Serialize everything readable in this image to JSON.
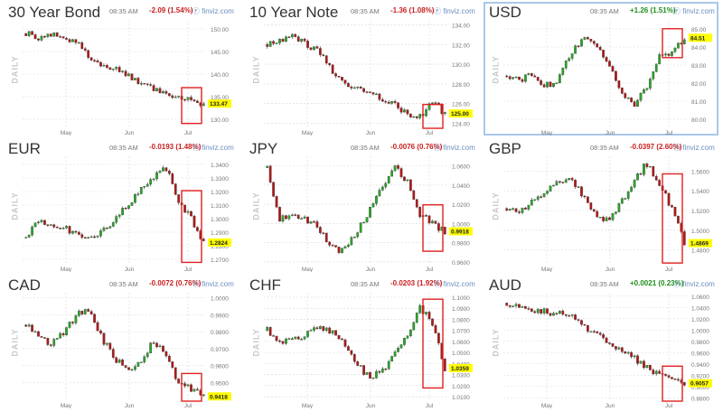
{
  "chart_data": [
    {
      "type": "candlestick",
      "title": "30 Year Bond",
      "time": "08:35 AM",
      "change": "-2.09 (1.54%)",
      "direction": "down",
      "source": "finviz.com",
      "side_label": "DAILY",
      "x_ticks": [
        "May",
        "Jun",
        "Jul"
      ],
      "y_ticks": [
        "130.00",
        "135.00",
        "140.00",
        "145.00",
        "150.00"
      ],
      "ylim": [
        128,
        152
      ],
      "last_value": "133.47",
      "shape": [
        149,
        148,
        149,
        148,
        147,
        144,
        142,
        141,
        140,
        138,
        137,
        136,
        135,
        134,
        133
      ]
    },
    {
      "type": "candlestick",
      "title": "10 Year Note",
      "time": "08:35 AM",
      "change": "-1.36 (1.08%)",
      "direction": "down",
      "source": "finviz.com",
      "side_label": "DAILY",
      "x_ticks": [
        "May",
        "Jun",
        "Jul"
      ],
      "y_ticks": [
        "124.00",
        "126.00",
        "128.00",
        "130.00",
        "132.00",
        "134.00"
      ],
      "ylim": [
        123.5,
        134.5
      ],
      "last_value": "125.00",
      "shape": [
        132,
        132.5,
        133,
        132,
        131.5,
        129.5,
        128,
        127.5,
        127,
        126.5,
        126,
        125,
        124.6,
        126.2,
        125
      ]
    },
    {
      "type": "candlestick",
      "title": "USD",
      "time": "08:35 AM",
      "change": "+1.26 (1.51%)",
      "direction": "up",
      "source": "finviz.com",
      "side_label": "DAILY",
      "x_ticks": [
        "May",
        "Jun",
        "Jul"
      ],
      "y_ticks": [
        "80.00",
        "81.00",
        "82.00",
        "83.00",
        "84.00",
        "85.00"
      ],
      "ylim": [
        79.5,
        85.5
      ],
      "last_value": "84.51",
      "shape": [
        82.4,
        82.1,
        82.6,
        81.8,
        82.2,
        83.6,
        84.5,
        84.2,
        83.2,
        81.6,
        80.8,
        81.8,
        83.4,
        83.6,
        84.5
      ]
    },
    {
      "type": "candlestick",
      "title": "EUR",
      "time": "08:35 AM",
      "change": "-0.0193 (1.48%)",
      "direction": "down",
      "source": "finviz.com",
      "side_label": "DAILY",
      "x_ticks": [
        "May",
        "Jun",
        "Jul"
      ],
      "y_ticks": [
        "1.2700",
        "1.2800",
        "1.2900",
        "1.3000",
        "1.3100",
        "1.3200",
        "1.3300",
        "1.3400"
      ],
      "ylim": [
        1.266,
        1.346
      ],
      "last_value": "1.2824",
      "shape": [
        1.286,
        1.298,
        1.296,
        1.294,
        1.288,
        1.284,
        1.29,
        1.3,
        1.31,
        1.322,
        1.33,
        1.338,
        1.314,
        1.3,
        1.282
      ]
    },
    {
      "type": "candlestick",
      "title": "JPY",
      "time": "08:35 AM",
      "change": "-0.0076 (0.76%)",
      "direction": "down",
      "source": "finviz.com",
      "side_label": "DAILY",
      "x_ticks": [
        "May",
        "Jun",
        "Jul"
      ],
      "y_ticks": [
        "0.9600",
        "0.9800",
        "1.0000",
        "1.0200",
        "1.0400",
        "1.0600"
      ],
      "ylim": [
        0.957,
        1.07
      ],
      "last_value": "0.9918",
      "shape": [
        1.058,
        1.004,
        1.01,
        1.004,
        0.996,
        0.978,
        0.97,
        0.99,
        1.012,
        1.036,
        1.062,
        1.044,
        1.01,
        1.0,
        0.992
      ]
    },
    {
      "type": "candlestick",
      "title": "GBP",
      "time": "08:35 AM",
      "change": "-0.0397 (2.60%)",
      "direction": "down",
      "source": "finviz.com",
      "side_label": "DAILY",
      "x_ticks": [
        "May",
        "Jun",
        "Jul"
      ],
      "y_ticks": [
        "1.4800",
        "1.5000",
        "1.5200",
        "1.5400",
        "1.5600"
      ],
      "ylim": [
        1.465,
        1.575
      ],
      "last_value": "1.4869",
      "shape": [
        1.522,
        1.52,
        1.528,
        1.538,
        1.548,
        1.552,
        1.536,
        1.516,
        1.51,
        1.528,
        1.548,
        1.568,
        1.548,
        1.522,
        1.487
      ]
    },
    {
      "type": "candlestick",
      "title": "CAD",
      "time": "08:35 AM",
      "change": "-0.0072 (0.76%)",
      "direction": "down",
      "source": "finviz.com",
      "side_label": "DAILY",
      "x_ticks": [
        "May",
        "Jun",
        "Jul"
      ],
      "y_ticks": [
        "0.9500",
        "0.9600",
        "0.9700",
        "0.9800",
        "0.9900",
        "1.0000"
      ],
      "ylim": [
        0.939,
        1.003
      ],
      "last_value": "0.9418",
      "shape": [
        0.984,
        0.978,
        0.972,
        0.98,
        0.99,
        0.994,
        0.976,
        0.964,
        0.958,
        0.962,
        0.974,
        0.968,
        0.95,
        0.946,
        0.942
      ]
    },
    {
      "type": "candlestick",
      "title": "CHF",
      "time": "08:35 AM",
      "change": "-0.0203 (1.92%)",
      "direction": "down",
      "source": "finviz.com",
      "side_label": "DAILY",
      "x_ticks": [
        "May",
        "Jun",
        "Jul"
      ],
      "y_ticks": [
        "1.0100",
        "1.0200",
        "1.0300",
        "1.0400",
        "1.0500",
        "1.0600",
        "1.0700",
        "1.0800",
        "1.0900",
        "1.1000"
      ],
      "ylim": [
        1.006,
        1.104
      ],
      "last_value": "1.0359",
      "shape": [
        1.07,
        1.058,
        1.062,
        1.066,
        1.072,
        1.07,
        1.058,
        1.04,
        1.028,
        1.032,
        1.05,
        1.066,
        1.09,
        1.078,
        1.036
      ]
    },
    {
      "type": "candlestick",
      "title": "AUD",
      "time": "08:35 AM",
      "change": "+0.0021 (0.23%)",
      "direction": "up",
      "source": "finviz.com",
      "side_label": "DAILY",
      "x_ticks": [
        "May",
        "Jun",
        "Jul"
      ],
      "y_ticks": [
        "0.8800",
        "0.9000",
        "0.9200",
        "0.9400",
        "0.9600",
        "0.9800",
        "1.0000",
        "1.0200",
        "1.0400",
        "1.0600"
      ],
      "ylim": [
        0.874,
        1.066
      ],
      "last_value": "0.9057",
      "shape": [
        1.048,
        1.04,
        1.036,
        1.032,
        1.03,
        1.024,
        1.008,
        0.994,
        0.976,
        0.962,
        0.95,
        0.934,
        0.92,
        0.912,
        0.906
      ]
    }
  ],
  "colors": {
    "up": "#2aa52a",
    "down": "#b01818",
    "grid": "#d8d8d8",
    "box": "#e02020",
    "value_bg": "#ffff00",
    "axis_text": "#777777"
  },
  "brand_icon": "finviz-logo-icon"
}
